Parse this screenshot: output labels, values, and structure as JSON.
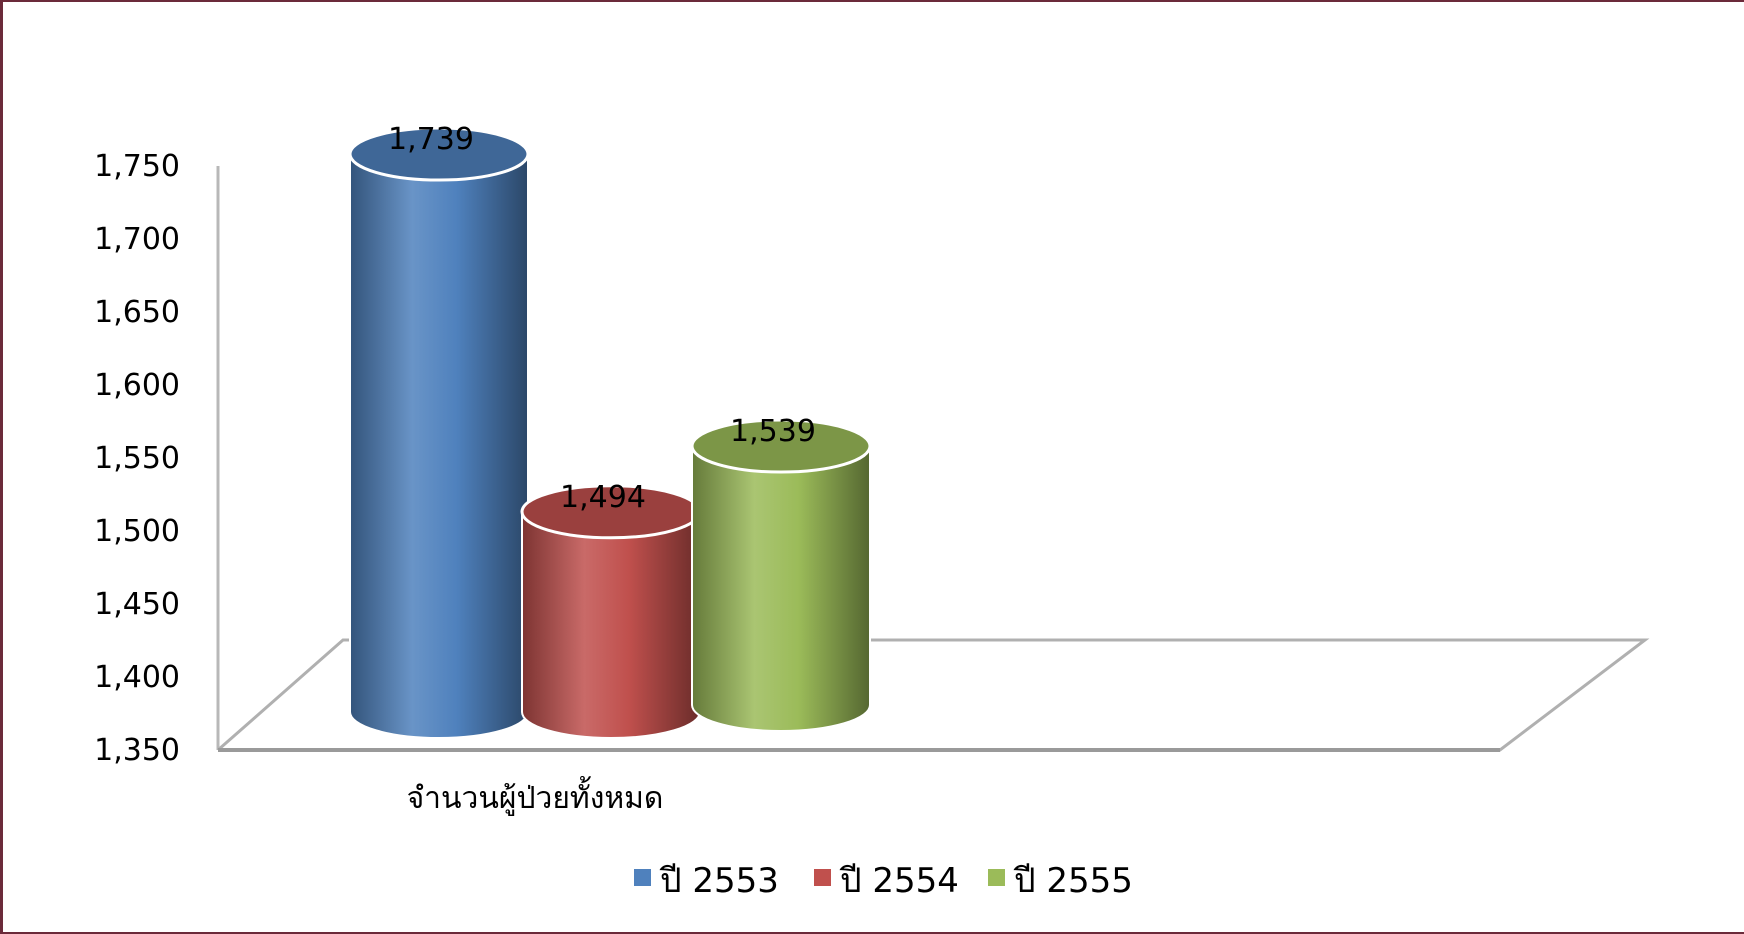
{
  "chart_data": {
    "type": "bar",
    "style": "3d-cylinder",
    "title": "",
    "xlabel": "",
    "ylabel": "",
    "categories": [
      "จำนวนผู้ป่วยทั้งหมด"
    ],
    "series": [
      {
        "name": "ปี 2553",
        "values": [
          1739
        ],
        "color": "#4f81bd"
      },
      {
        "name": "ปี 2554",
        "values": [
          1494
        ],
        "color": "#c0504d"
      },
      {
        "name": "ปี 2555",
        "values": [
          1539
        ],
        "color": "#9bbb59"
      }
    ],
    "data_labels": [
      "1,739",
      "1,494",
      "1,539"
    ],
    "ylim": [
      1350,
      1750
    ],
    "y_ticks": [
      1350,
      1400,
      1450,
      1500,
      1550,
      1600,
      1650,
      1700,
      1750
    ],
    "y_tick_labels": [
      "1,350",
      "1,400",
      "1,450",
      "1,500",
      "1,550",
      "1,600",
      "1,650",
      "1,700",
      "1,750"
    ],
    "grid": false,
    "legend_position": "bottom"
  }
}
